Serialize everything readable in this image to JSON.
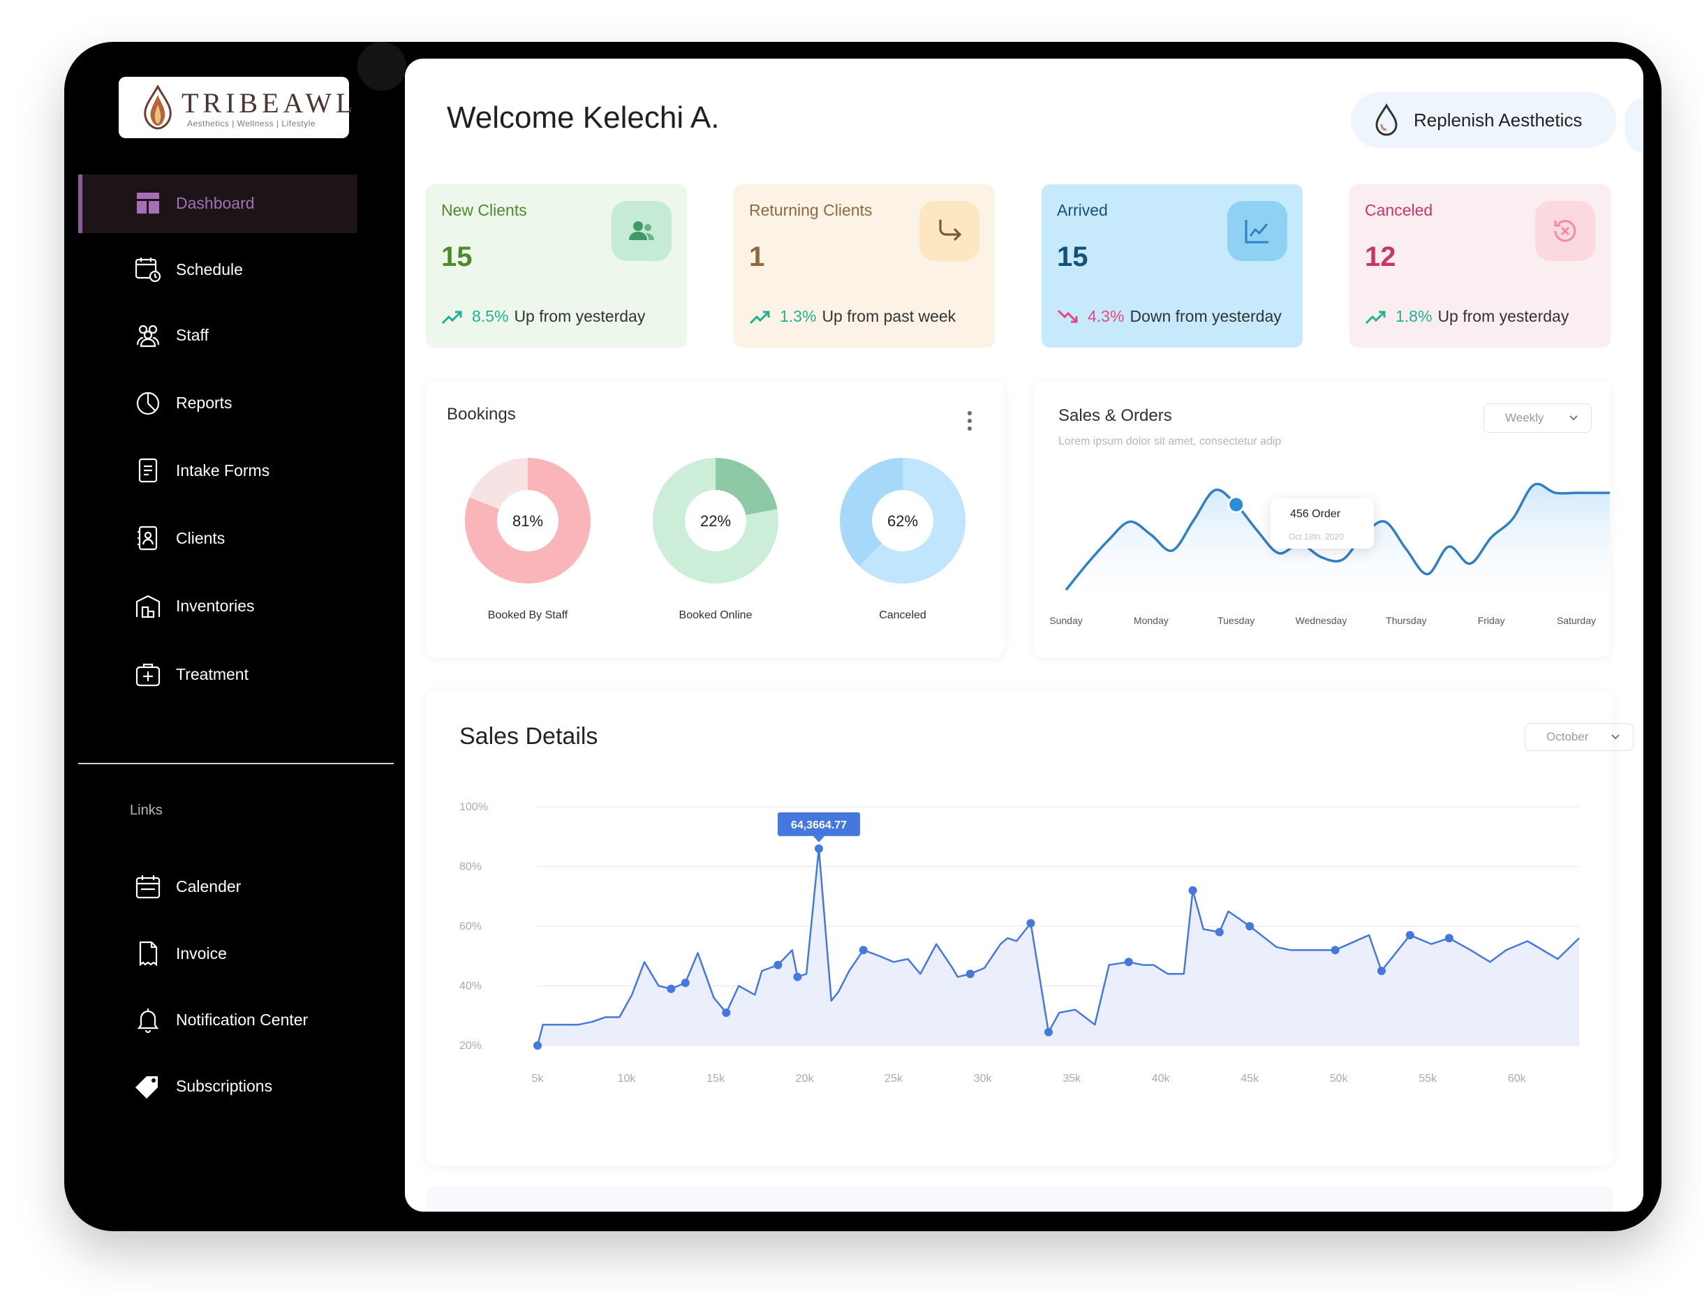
{
  "brand": {
    "logo_text": "TRIBEAWL",
    "tagline": "Aesthetics | Wellness | Lifestyle"
  },
  "sidebar": {
    "items": [
      {
        "label": "Dashboard",
        "icon": "dashboard-icon",
        "active": true
      },
      {
        "label": "Schedule",
        "icon": "calendar-clock-icon"
      },
      {
        "label": "Staff",
        "icon": "staff-icon"
      },
      {
        "label": "Reports",
        "icon": "pie-chart-icon"
      },
      {
        "label": "Intake Forms",
        "icon": "form-icon"
      },
      {
        "label": "Clients",
        "icon": "contact-book-icon"
      },
      {
        "label": "Inventories",
        "icon": "warehouse-icon"
      },
      {
        "label": "Treatment",
        "icon": "medical-case-icon"
      }
    ],
    "links_label": "Links",
    "links": [
      {
        "label": "Calender",
        "icon": "calendar-icon"
      },
      {
        "label": "Invoice",
        "icon": "invoice-icon"
      },
      {
        "label": "Notification Center",
        "icon": "bell-icon"
      },
      {
        "label": "Subscriptions",
        "icon": "tag-icon"
      }
    ],
    "active_color": "#a56fb6"
  },
  "header": {
    "welcome": "Welcome Kelechi A.",
    "org_name": "Replenish Aesthetics"
  },
  "stats": [
    {
      "label": "New Clients",
      "value": "15",
      "change": "8.5%",
      "change_text": "Up from yesterday",
      "trend": "up",
      "icon": "users-icon",
      "bg": "#edf7eb",
      "icon_bg": "#c5ebd4",
      "accent": "#4e8a2c"
    },
    {
      "label": "Returning Clients",
      "value": "1",
      "change": "1.3%",
      "change_text": "Up from past week",
      "trend": "up",
      "icon": "return-arrow-icon",
      "bg": "#fcf3e6",
      "icon_bg": "#fde7c3",
      "accent": "#8b6a3b"
    },
    {
      "label": "Arrived",
      "value": "15",
      "change": "4.3%",
      "change_text": "Down from yesterday",
      "trend": "down",
      "icon": "line-chart-icon",
      "bg": "#c6e9fb",
      "icon_bg": "#8fd0f5",
      "accent": "#13517a"
    },
    {
      "label": "Canceled",
      "value": "12",
      "change": "1.8%",
      "change_text": "Up from yesterday",
      "trend": "up",
      "icon": "cancel-clock-icon",
      "bg": "#fbeef1",
      "icon_bg": "#fbd9e0",
      "accent": "#c93568"
    }
  ],
  "bookings": {
    "title": "Bookings",
    "donuts": [
      {
        "percent": 81,
        "label": "81%",
        "caption": "Booked By Staff",
        "color": "#fab5b9",
        "rest": "#f8e3e4"
      },
      {
        "percent": 22,
        "label": "22%",
        "caption": "Booked Online",
        "color": "#8ec9a6",
        "rest": "#cceed8"
      },
      {
        "percent": 62,
        "label": "62%",
        "caption": "Canceled",
        "color": "#bfe6fc",
        "rest": "#a6d8f9"
      }
    ]
  },
  "sales_orders": {
    "title": "Sales & Orders",
    "subtitle": "Lorem ipsum dolor sit amet, consectetur adip",
    "period": "Weekly",
    "tooltip": {
      "value": "456",
      "unit": "Order",
      "date": "Oct 18th, 2020"
    },
    "chart_data": {
      "type": "area",
      "categories": [
        "Sunday",
        "Monday",
        "Tuesday",
        "Wednesday",
        "Thursday",
        "Friday",
        "Saturday"
      ],
      "x": [
        0,
        0.25,
        0.5,
        0.75,
        1,
        1.25,
        1.5,
        1.75,
        2,
        2.25,
        2.5,
        2.75,
        3,
        3.25,
        3.5,
        3.75,
        4,
        4.25,
        4.5,
        4.75,
        5,
        5.25,
        5.5,
        5.75,
        6,
        6.25,
        6.5
      ],
      "values": [
        10,
        30,
        48,
        62,
        52,
        40,
        63,
        86,
        75,
        55,
        38,
        45,
        35,
        33,
        52,
        62,
        41,
        22,
        43,
        30,
        50,
        64,
        90,
        84,
        84,
        84,
        84
      ],
      "highlight_index": 8,
      "color": "#2f7fc6"
    }
  },
  "sales_details": {
    "title": "Sales Details",
    "period": "October",
    "tooltip": "64,3664.77",
    "chart_data": {
      "type": "area",
      "xlabel": "",
      "ylabel": "",
      "x_ticks": [
        "5k",
        "10k",
        "15k",
        "20k",
        "25k",
        "30k",
        "35k",
        "40k",
        "45k",
        "50k",
        "55k",
        "60k"
      ],
      "y_ticks": [
        "20%",
        "40%",
        "60%",
        "80%",
        "100%"
      ],
      "xlim": [
        5,
        63.5
      ],
      "ylim": [
        20,
        100
      ],
      "x": [
        5,
        5.3,
        7.3,
        8.1,
        8.8,
        9.6,
        10.3,
        11,
        11.8,
        12.5,
        13.3,
        14,
        14.9,
        15.6,
        16.3,
        17.2,
        17.6,
        18.5,
        19.3,
        19.6,
        20.1,
        20.8,
        21.5,
        21.9,
        22.5,
        23.3,
        24.2,
        25,
        25.8,
        26.5,
        27.4,
        28.3,
        28.6,
        29.3,
        30.1,
        31,
        31.4,
        31.9,
        32.7,
        33.7,
        34.3,
        35.2,
        36.3,
        37.1,
        38.2,
        39,
        39.6,
        40.4,
        40.8,
        41.3,
        41.8,
        42.4,
        43.3,
        43.8,
        45,
        46.5,
        47.3,
        48.1,
        49.8,
        51.7,
        52.4,
        54,
        55.2,
        56.2,
        57.4,
        58.5,
        59.4,
        60.6,
        62.3,
        63.5
      ],
      "y": [
        20,
        27,
        27,
        28,
        29.5,
        29.5,
        37,
        48,
        40,
        39,
        41,
        51,
        36,
        31,
        40,
        37,
        45,
        47,
        52,
        43,
        44,
        86,
        35,
        38,
        45,
        52,
        50,
        48,
        49,
        44,
        54,
        46,
        43,
        44,
        46,
        54,
        56,
        55,
        61,
        24.5,
        31,
        32,
        27,
        47,
        48,
        47,
        47,
        44,
        44,
        44,
        72,
        59,
        58,
        65,
        60,
        53,
        52,
        52,
        52,
        57,
        45,
        57,
        54,
        56,
        52,
        48,
        52,
        55,
        49,
        56
      ],
      "markers": [
        0,
        9,
        10,
        13,
        17,
        19,
        21,
        25,
        33,
        38,
        39,
        44,
        50,
        52,
        54,
        58,
        60,
        61,
        63
      ],
      "peak_index": 21,
      "color": "#4478de",
      "fill": "#e6ebfb"
    }
  }
}
